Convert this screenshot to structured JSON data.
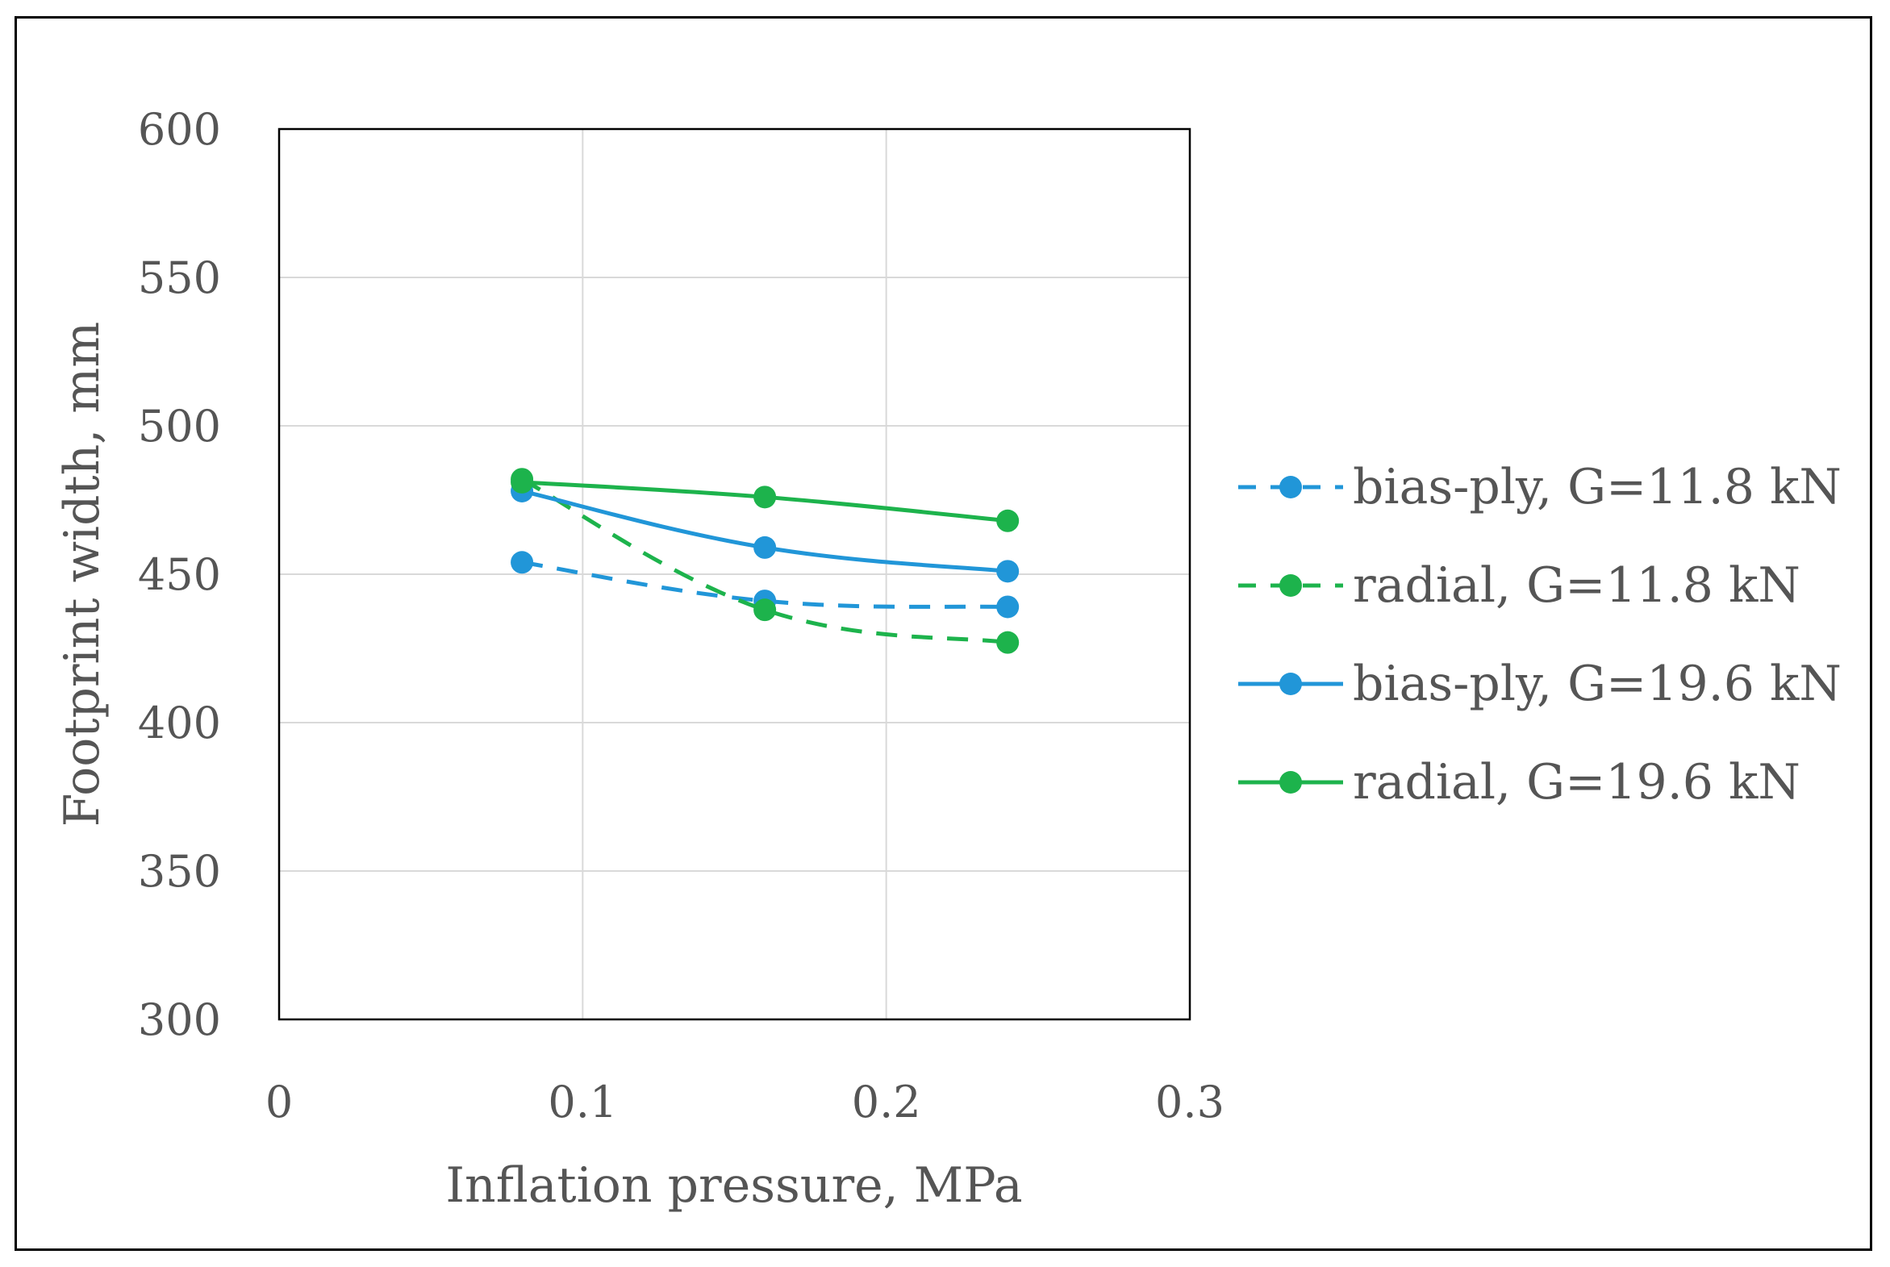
{
  "chart_data": {
    "type": "line",
    "title": "",
    "xlabel": "Inflation pressure,  MPa",
    "ylabel": "Footprint  width,  mm",
    "xlim": [
      0,
      0.3
    ],
    "ylim": [
      300,
      600
    ],
    "xticks": [
      0,
      0.1,
      0.2,
      0.3
    ],
    "xtick_labels": [
      "0",
      "0.1",
      "0.2",
      "0.3"
    ],
    "yticks": [
      300,
      350,
      400,
      450,
      500,
      550,
      600
    ],
    "ytick_labels": [
      "300",
      "350",
      "400",
      "450",
      "500",
      "550",
      "600"
    ],
    "grid": true,
    "legend_position": "right",
    "series": [
      {
        "name": "bias-ply, G=11.8 kN",
        "color": "#2196d8",
        "dash": true,
        "x": [
          0.08,
          0.16,
          0.24
        ],
        "y": [
          454,
          441,
          439
        ]
      },
      {
        "name": "radial, G=11.8 kN",
        "color": "#1db34c",
        "dash": true,
        "x": [
          0.08,
          0.16,
          0.24
        ],
        "y": [
          482,
          438,
          427
        ]
      },
      {
        "name": "bias-ply, G=19.6 kN",
        "color": "#2196d8",
        "dash": false,
        "x": [
          0.08,
          0.16,
          0.24
        ],
        "y": [
          478,
          459,
          451
        ]
      },
      {
        "name": "radial, G=19.6 kN",
        "color": "#1db34c",
        "dash": false,
        "x": [
          0.08,
          0.16,
          0.24
        ],
        "y": [
          481,
          476,
          468
        ]
      }
    ]
  }
}
